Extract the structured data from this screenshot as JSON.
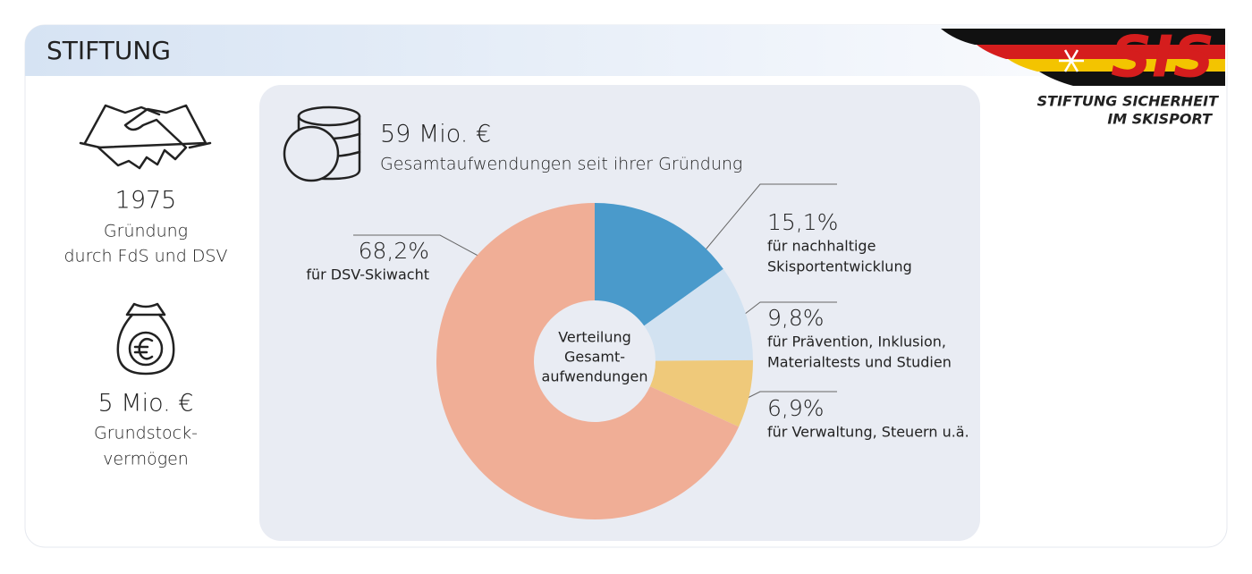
{
  "header": {
    "title": "STIFTUNG"
  },
  "logo": {
    "mark": "SIS",
    "line1": "STIFTUNG SICHERHEIT",
    "line2": "IM SKISPORT"
  },
  "facts": [
    {
      "value": "1975",
      "lines": [
        "Gründung",
        "durch FdS und DSV"
      ]
    },
    {
      "value": "5 Mio. €",
      "lines": [
        "Grundstock-",
        "vermögen"
      ]
    }
  ],
  "total": {
    "value": "59 Mio. €",
    "label": "Gesamtaufwendungen seit ihrer Gründung"
  },
  "chart_data": {
    "type": "donut",
    "center_label": [
      "Verteilung",
      "Gesamt-",
      "aufwendungen"
    ],
    "categories": [
      [
        "für nachhaltige",
        "Skisportentwicklung"
      ],
      [
        "für Prävention, Inklusion,",
        "Materialtests und Studien"
      ],
      [
        "für Verwaltung, Steuern u.ä."
      ],
      [
        "für DSV-Skiwacht"
      ]
    ],
    "values": [
      15.1,
      9.8,
      6.9,
      68.2
    ],
    "value_labels": [
      "15,1%",
      "9,8%",
      "6,9%",
      "68,2%"
    ],
    "colors": [
      "#4a9acb",
      "#d2e2f1",
      "#efc97a",
      "#f0ae96"
    ]
  }
}
